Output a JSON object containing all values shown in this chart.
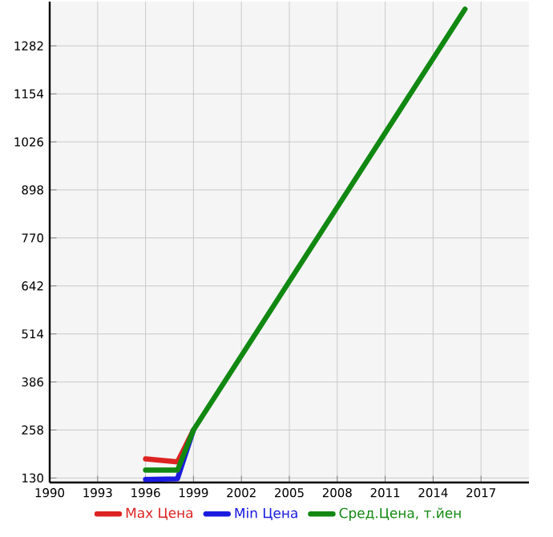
{
  "chart_data": {
    "type": "line",
    "x": [
      1996,
      1998,
      1999,
      2016
    ],
    "series": [
      {
        "name": "Max Цена",
        "color": "#dd2222",
        "values": [
          181,
          173,
          258,
          null
        ]
      },
      {
        "name": "Min Цена",
        "color": "#1a1ae0",
        "values": [
          126,
          128,
          258,
          null
        ]
      },
      {
        "name": "Сред.Цена, т.йен",
        "color": "#118811",
        "values": [
          151,
          151,
          258,
          1380
        ]
      }
    ],
    "xlim": [
      1990,
      2020
    ],
    "xticks": [
      1990,
      1993,
      1996,
      1999,
      2002,
      2005,
      2008,
      2011,
      2014,
      2017
    ],
    "ylim": [
      118,
      1400
    ],
    "yticks": [
      130,
      258,
      386,
      514,
      642,
      770,
      898,
      1026,
      1154,
      1282
    ],
    "grid": true,
    "legend": "bottom",
    "marker": "none",
    "line_style": "solid"
  }
}
